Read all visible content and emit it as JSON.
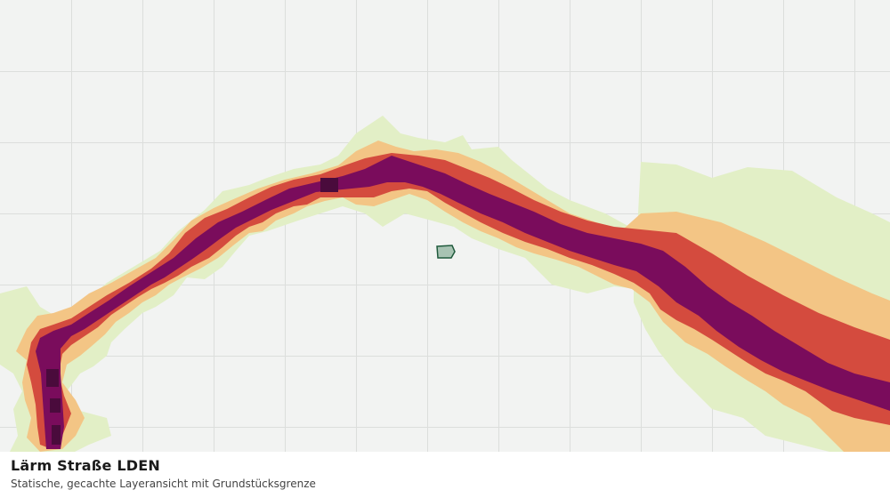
{
  "map": {
    "layer_name": "Lärm Straße LDEN",
    "view_description": "Statische, gecachte Layeransicht mit Grundstücksgrenze",
    "noise_band_colors": {
      "lowest": "#e2efc6",
      "low": "#f3c585",
      "medium": "#d44b3e",
      "high": "#7a0c5c",
      "highest": "#4a0b3c"
    },
    "parcel_color": "#a8c3b3",
    "parcel_outline_color": "#1f5a3c"
  }
}
